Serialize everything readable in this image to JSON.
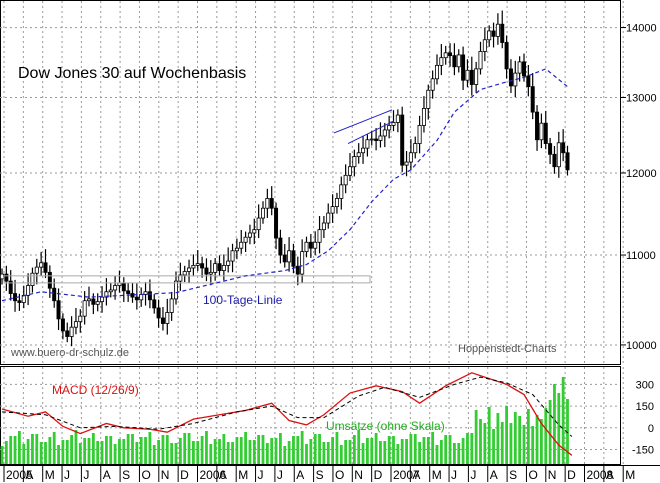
{
  "chart_data": [
    {
      "type": "candlestick",
      "title": "Dow Jones 30 auf Wochenbasis",
      "source_left": "www.buero-dr-schulz.de",
      "source_right": "Hoppenstedt-Charts",
      "ylim": [
        9800,
        14400
      ],
      "yscale": "log",
      "y_ticks": [
        10000,
        11000,
        12000,
        13000,
        14000
      ],
      "y_tick_labels": [
        "10000",
        "11000",
        "12000",
        "13000",
        "14000"
      ],
      "x_ticks": [
        "2005",
        "A",
        "M",
        "J",
        "J",
        "A",
        "S",
        "O",
        "N",
        "D",
        "2006",
        "A",
        "M",
        "J",
        "J",
        "A",
        "S",
        "O",
        "N",
        "D",
        "2007",
        "A",
        "M",
        "J",
        "J",
        "A",
        "S",
        "O",
        "N",
        "D",
        "2008",
        "A",
        "M"
      ],
      "grid": true,
      "series": [
        {
          "name": "Dow Jones 30",
          "weekly_close": [
            10780,
            10700,
            10560,
            10480,
            10460,
            10540,
            10650,
            10790,
            10860,
            10910,
            10800,
            10620,
            10480,
            10280,
            10150,
            10090,
            10190,
            10250,
            10310,
            10480,
            10500,
            10440,
            10470,
            10520,
            10580,
            10600,
            10650,
            10680,
            10590,
            10560,
            10520,
            10490,
            10550,
            10580,
            10490,
            10400,
            10290,
            10230,
            10350,
            10500,
            10700,
            10770,
            10810,
            10850,
            10880,
            10900,
            10850,
            10780,
            10800,
            10900,
            10820,
            10880,
            10930,
            11050,
            11080,
            11150,
            11210,
            11260,
            11300,
            11440,
            11560,
            11680,
            11560,
            11200,
            11000,
            10920,
            11050,
            10870,
            10780,
            11040,
            11150,
            11080,
            11150,
            11300,
            11380,
            11500,
            11580,
            11680,
            11850,
            11970,
            12080,
            12210,
            12260,
            12320,
            12430,
            12440,
            12420,
            12480,
            12560,
            12620,
            12660,
            12760,
            12100,
            12140,
            12260,
            12380,
            12620,
            12850,
            13100,
            13260,
            13450,
            13560,
            13630,
            13590,
            13430,
            13600,
            13240,
            13380,
            13180,
            13400,
            13650,
            13820,
            13950,
            13870,
            14050,
            13780,
            13400,
            13160,
            13340,
            13500,
            13300,
            13150,
            12800,
            12430,
            12650,
            12380,
            12240,
            12080,
            12390,
            12260,
            12040
          ]
        },
        {
          "name": "100-Tage-Linie",
          "label": "100-Tage-Linie",
          "description_points": [
            [
              0,
              10480
            ],
            [
              9,
              10580
            ],
            [
              20,
              10520
            ],
            [
              40,
              10570
            ],
            [
              56,
              10760
            ],
            [
              65,
              10820
            ],
            [
              70,
              10890
            ],
            [
              75,
              11050
            ],
            [
              80,
              11300
            ],
            [
              85,
              11640
            ],
            [
              90,
              11920
            ],
            [
              94,
              12040
            ],
            [
              100,
              12420
            ],
            [
              104,
              12800
            ],
            [
              110,
              13110
            ],
            [
              115,
              13200
            ],
            [
              120,
              13280
            ],
            [
              125,
              13400
            ],
            [
              130,
              13150
            ]
          ],
          "style": "dashed",
          "color": "#2222cc"
        }
      ],
      "annotations": [
        "100-Tage-Linie"
      ]
    },
    {
      "type": "line+bar",
      "ylim": [
        -250,
        420
      ],
      "y_ticks": [
        300,
        150,
        0,
        -150
      ],
      "y_tick_labels": [
        "300",
        "150",
        "0",
        "-150"
      ],
      "grid": true,
      "series": [
        {
          "name": "MACD (12/26/9)",
          "label": "MACD (12/26/9)",
          "points": [
            [
              0,
              130
            ],
            [
              6,
              80
            ],
            [
              10,
              110
            ],
            [
              14,
              10
            ],
            [
              18,
              -40
            ],
            [
              24,
              30
            ],
            [
              28,
              0
            ],
            [
              34,
              -10
            ],
            [
              38,
              -30
            ],
            [
              44,
              60
            ],
            [
              50,
              90
            ],
            [
              56,
              120
            ],
            [
              62,
              170
            ],
            [
              66,
              50
            ],
            [
              70,
              20
            ],
            [
              74,
              90
            ],
            [
              80,
              240
            ],
            [
              86,
              290
            ],
            [
              92,
              250
            ],
            [
              96,
              170
            ],
            [
              102,
              290
            ],
            [
              108,
              380
            ],
            [
              112,
              340
            ],
            [
              116,
              300
            ],
            [
              120,
              230
            ],
            [
              124,
              30
            ],
            [
              128,
              -120
            ],
            [
              131,
              -190
            ]
          ],
          "color": "#dd1111"
        },
        {
          "name": "Signal",
          "points": [
            [
              0,
              110
            ],
            [
              10,
              90
            ],
            [
              18,
              0
            ],
            [
              26,
              10
            ],
            [
              36,
              -10
            ],
            [
              44,
              30
            ],
            [
              54,
              110
            ],
            [
              62,
              150
            ],
            [
              68,
              70
            ],
            [
              74,
              70
            ],
            [
              82,
              220
            ],
            [
              88,
              280
            ],
            [
              96,
              210
            ],
            [
              104,
              300
            ],
            [
              110,
              350
            ],
            [
              116,
              310
            ],
            [
              122,
              230
            ],
            [
              128,
              20
            ],
            [
              131,
              -60
            ]
          ],
          "style": "dashed",
          "color": "#000000"
        },
        {
          "name": "Umsätze (ohne Skala)",
          "label": "Umsätze (ohne Skala)",
          "color": "#33cc33"
        }
      ]
    }
  ]
}
